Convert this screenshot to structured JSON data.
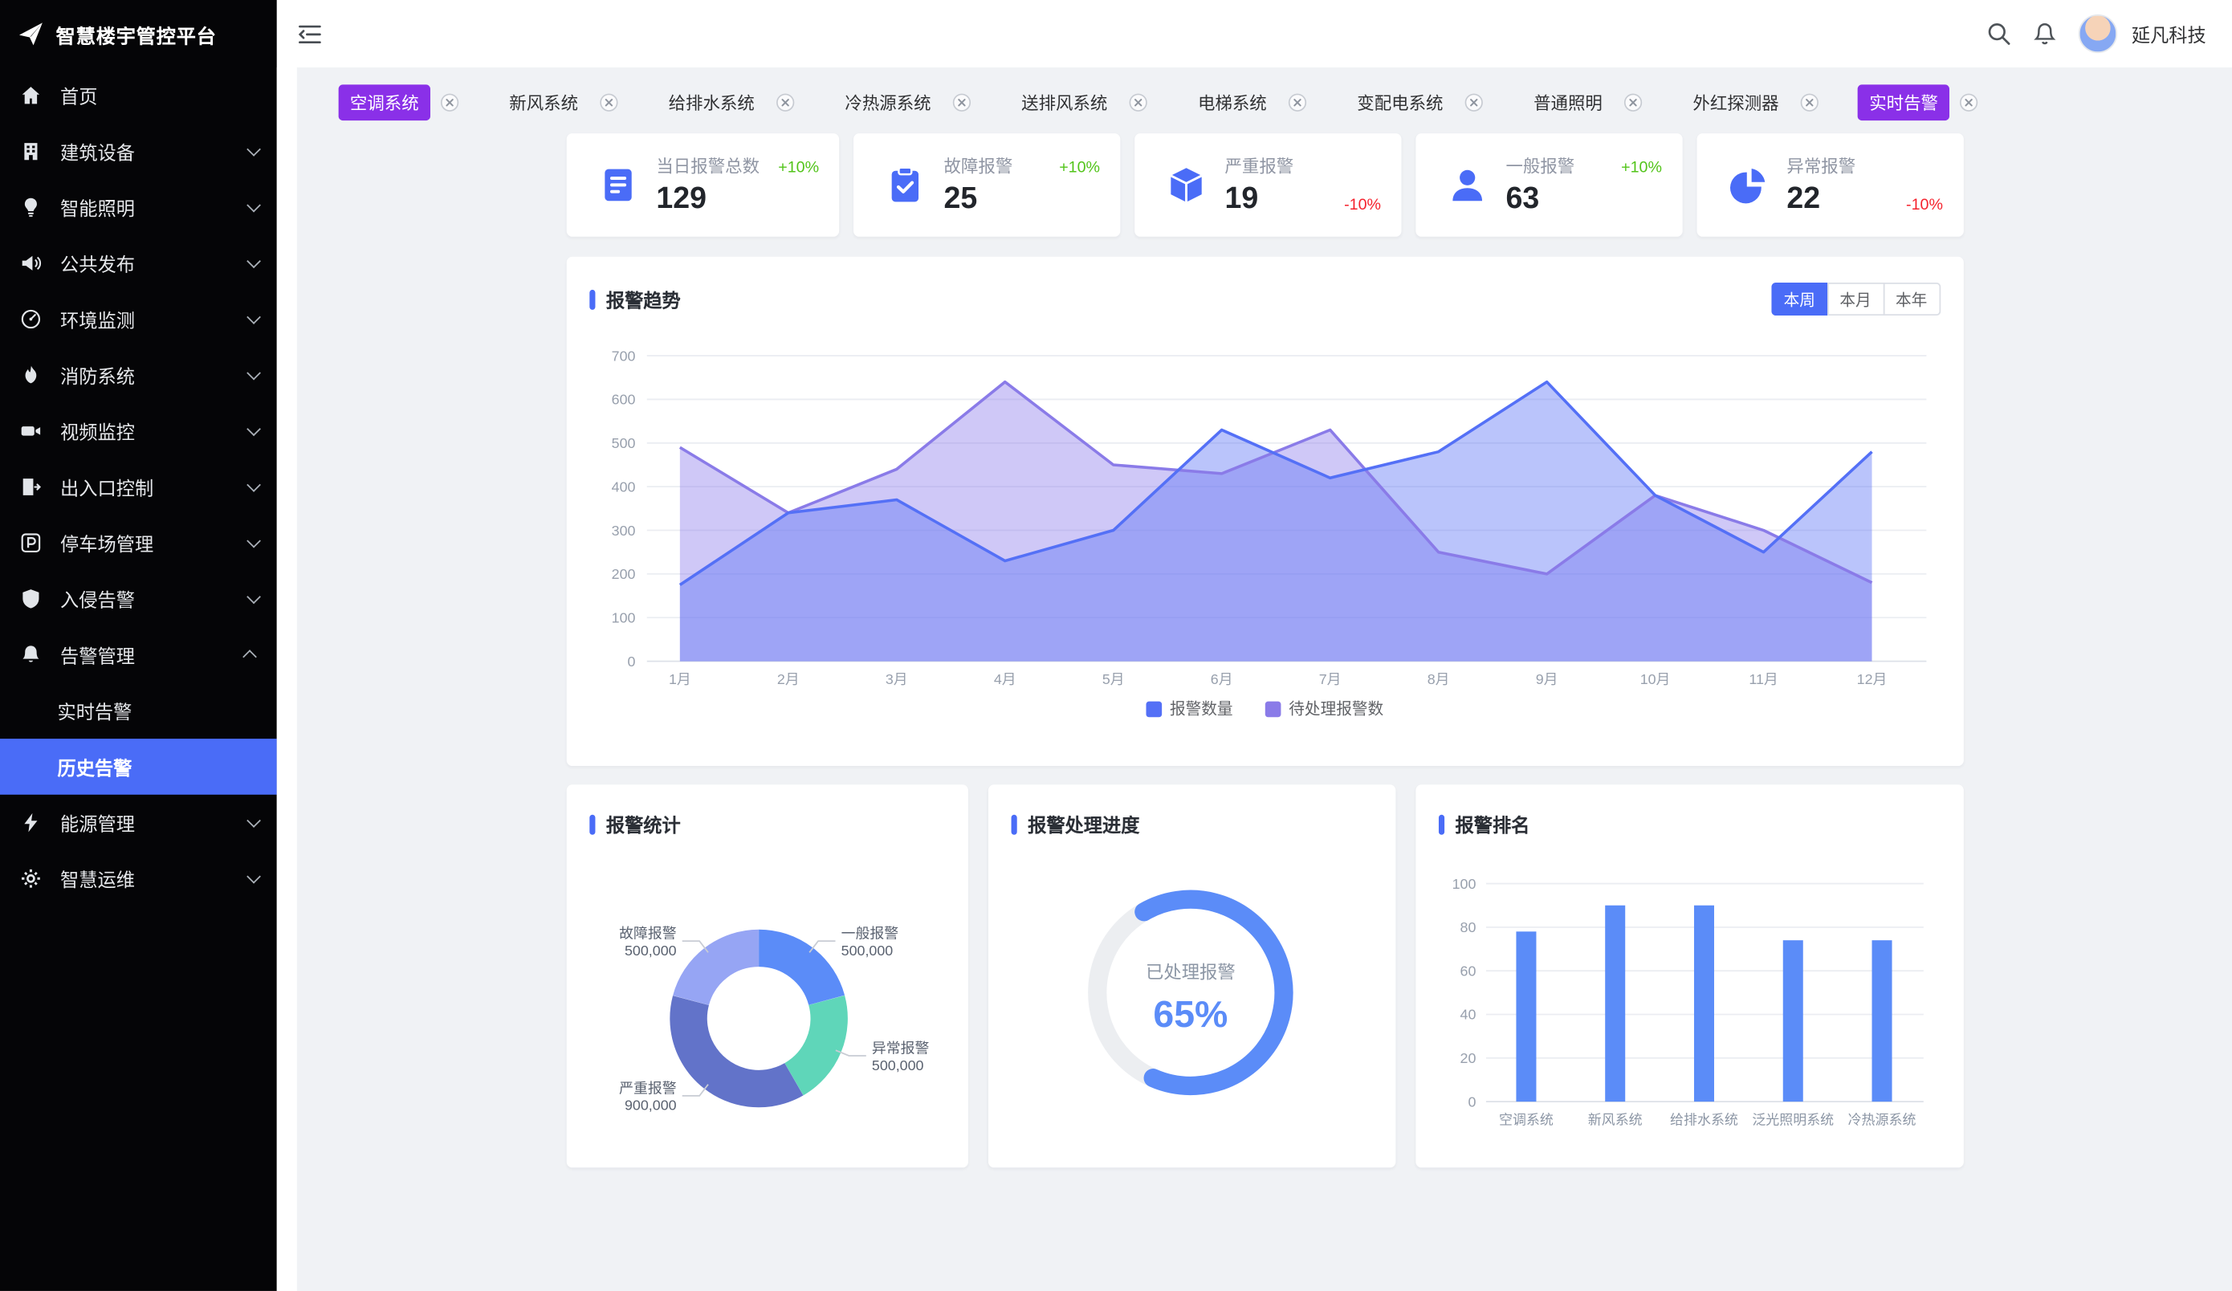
{
  "app": {
    "title": "智慧楼宇管控平台"
  },
  "topbar": {
    "user_name": "延凡科技"
  },
  "sidebar": {
    "items": [
      {
        "name": "home",
        "label": "首页",
        "icon": "home-icon",
        "expandable": false
      },
      {
        "name": "building-equipment",
        "label": "建筑设备",
        "icon": "building-icon",
        "expandable": true
      },
      {
        "name": "smart-lighting",
        "label": "智能照明",
        "icon": "lighting-icon",
        "expandable": true
      },
      {
        "name": "public-broadcast",
        "label": "公共发布",
        "icon": "broadcast-icon",
        "expandable": true
      },
      {
        "name": "environment-monitoring",
        "label": "环境监测",
        "icon": "environment-icon",
        "expandable": true
      },
      {
        "name": "fire-system",
        "label": "消防系统",
        "icon": "fire-icon",
        "expandable": true
      },
      {
        "name": "video-surveillance",
        "label": "视频监控",
        "icon": "video-icon",
        "expandable": true
      },
      {
        "name": "access-control",
        "label": "出入口控制",
        "icon": "access-icon",
        "expandable": true
      },
      {
        "name": "parking-management",
        "label": "停车场管理",
        "icon": "parking-icon",
        "expandable": true
      },
      {
        "name": "intrusion-alarm",
        "label": "入侵告警",
        "icon": "intrusion-icon",
        "expandable": true
      },
      {
        "name": "alarm-management",
        "label": "告警管理",
        "icon": "alarm-icon",
        "expandable": true,
        "expanded": true,
        "children": [
          {
            "name": "realtime-alarm",
            "label": "实时告警",
            "active": false
          },
          {
            "name": "history-alarm",
            "label": "历史告警",
            "active": true
          }
        ]
      },
      {
        "name": "energy-management",
        "label": "能源管理",
        "icon": "energy-icon",
        "expandable": true
      },
      {
        "name": "smart-ops",
        "label": "智慧运维",
        "icon": "ops-icon",
        "expandable": true
      }
    ]
  },
  "filters": {
    "tags": [
      {
        "label": "空调系统",
        "selected": true
      },
      {
        "label": "新风系统",
        "selected": false
      },
      {
        "label": "给排水系统",
        "selected": false
      },
      {
        "label": "冷热源系统",
        "selected": false
      },
      {
        "label": "送排风系统",
        "selected": false
      },
      {
        "label": "电梯系统",
        "selected": false
      },
      {
        "label": "变配电系统",
        "selected": false
      },
      {
        "label": "普通照明",
        "selected": false
      },
      {
        "label": "外红探测器",
        "selected": false
      },
      {
        "label": "实时告警",
        "selected": true
      }
    ]
  },
  "stats": [
    {
      "label": "当日报警总数",
      "value": "129",
      "delta": "+10%",
      "trend": "up",
      "icon": "report-icon"
    },
    {
      "label": "故障报警",
      "value": "25",
      "delta": "+10%",
      "trend": "up",
      "icon": "clipboard-icon"
    },
    {
      "label": "严重报警",
      "value": "19",
      "delta": "-10%",
      "trend": "down",
      "icon": "box-icon"
    },
    {
      "label": "一般报警",
      "value": "63",
      "delta": "+10%",
      "trend": "up",
      "icon": "user-icon"
    },
    {
      "label": "异常报警",
      "value": "22",
      "delta": "-10%",
      "trend": "down",
      "icon": "pie-icon"
    }
  ],
  "trend": {
    "ranges": [
      {
        "label": "本周",
        "active": true
      },
      {
        "label": "本月",
        "active": false
      },
      {
        "label": "本年",
        "active": false
      }
    ]
  },
  "colors": {
    "primary": "#4a6cf7",
    "tag_selected": "#8a30e8",
    "positive": "#52c41a",
    "negative": "#f5222d",
    "sidebar_bg": "#050507",
    "content_bg": "#f0f2f5"
  },
  "chart_data": [
    {
      "id": "alarm-trend",
      "type": "area",
      "title": "报警趋势",
      "x": [
        "1月",
        "2月",
        "3月",
        "4月",
        "5月",
        "6月",
        "7月",
        "8月",
        "9月",
        "10月",
        "11月",
        "12月"
      ],
      "series": [
        {
          "name": "报警数量",
          "color": "#5470f6",
          "fill": "rgba(90,115,245,0.42)",
          "values": [
            175,
            340,
            370,
            230,
            300,
            530,
            420,
            480,
            640,
            380,
            250,
            480
          ]
        },
        {
          "name": "待处理报警数",
          "color": "#8a7be8",
          "fill": "rgba(140,125,235,0.42)",
          "values": [
            490,
            340,
            440,
            640,
            450,
            430,
            530,
            250,
            200,
            380,
            300,
            180
          ]
        }
      ],
      "ylim": [
        0,
        700
      ],
      "ytick": 100,
      "grid": true,
      "legend_position": "bottom"
    },
    {
      "id": "alarm-statistics",
      "type": "pie",
      "title": "报警统计",
      "slices": [
        {
          "label": "一般报警",
          "value": 500000,
          "display": "500,000",
          "color": "#5b8cf8"
        },
        {
          "label": "异常报警",
          "value": 500000,
          "display": "500,000",
          "color": "#5fd6b9"
        },
        {
          "label": "严重报警",
          "value": 900000,
          "display": "900,000",
          "color": "#6273c9"
        },
        {
          "label": "故障报警",
          "value": 500000,
          "display": "500,000",
          "color": "#96a5f4"
        }
      ],
      "inner_radius_ratio": 0.58
    },
    {
      "id": "alarm-progress",
      "type": "progress",
      "title": "报警处理进度",
      "label": "已处理报警",
      "percent": 65,
      "color": "#5b8cf8",
      "track_color": "#eceef1"
    },
    {
      "id": "alarm-ranking",
      "type": "bar",
      "title": "报警排名",
      "categories": [
        "空调系统",
        "新风系统",
        "给排水系统",
        "泛光照明系统",
        "冷热源系统"
      ],
      "values": [
        78,
        90,
        90,
        74,
        74
      ],
      "color": "#5b8cf8",
      "ylim": [
        0,
        100
      ],
      "ytick": 20,
      "grid": true
    }
  ]
}
